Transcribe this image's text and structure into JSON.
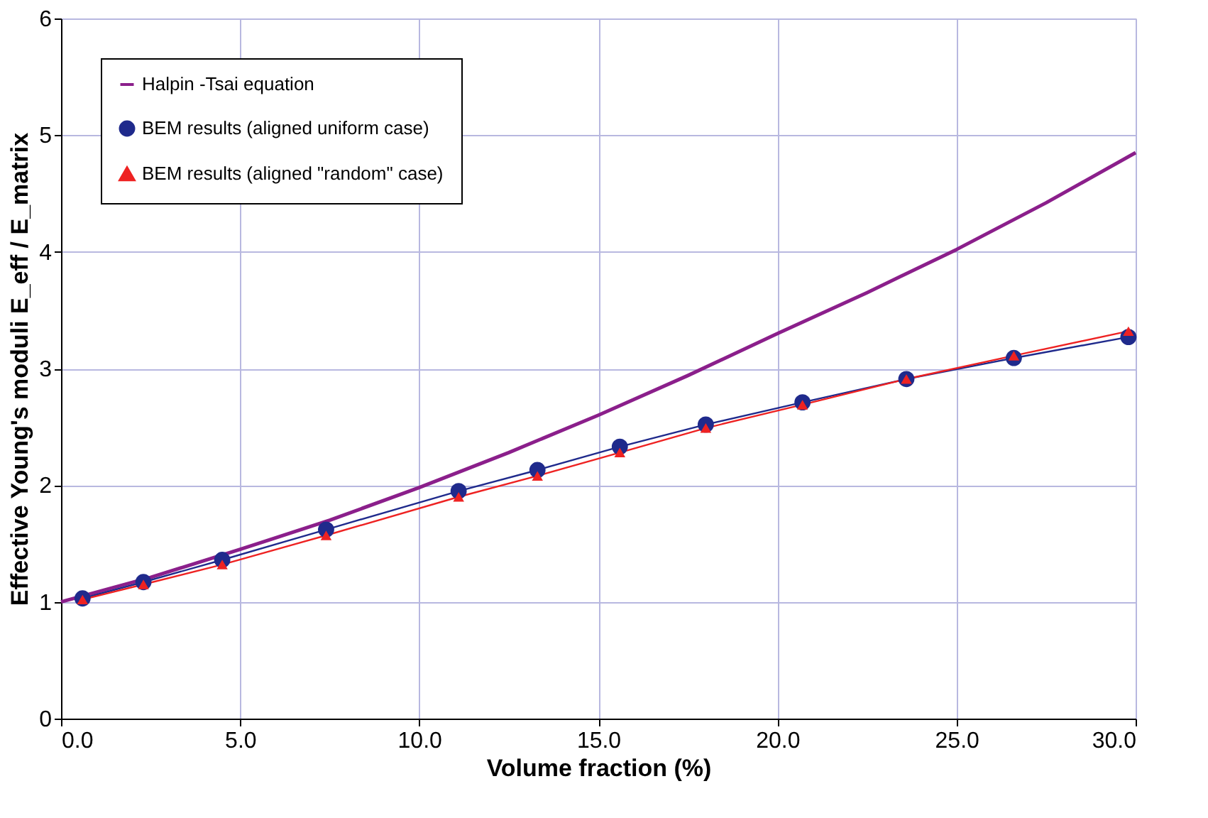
{
  "chart_data": {
    "type": "line",
    "xlabel": "Volume fraction (%)",
    "ylabel": "Effective Young's moduli E_eff / E_matrix",
    "xlim": [
      0,
      30
    ],
    "ylim": [
      0,
      6
    ],
    "xticks": [
      {
        "value": 0,
        "label": "0.0"
      },
      {
        "value": 5,
        "label": "5.0"
      },
      {
        "value": 10,
        "label": "10.0"
      },
      {
        "value": 15,
        "label": "15.0"
      },
      {
        "value": 20,
        "label": "20.0"
      },
      {
        "value": 25,
        "label": "25.0"
      },
      {
        "value": 30,
        "label": "30.0"
      }
    ],
    "yticks": [
      0,
      1,
      2,
      3,
      4,
      5,
      6
    ],
    "grid": true,
    "legend": "top left",
    "series": [
      {
        "name": "Halpin -Tsai equation",
        "color": "#8b1f8b",
        "marker": "none",
        "x": [
          0,
          2.5,
          5,
          7.5,
          10,
          12.5,
          15,
          17.5,
          20,
          22.5,
          25,
          27.5,
          30
        ],
        "values": [
          1.0,
          1.21,
          1.45,
          1.7,
          1.98,
          2.28,
          2.6,
          2.94,
          3.3,
          3.65,
          4.02,
          4.42,
          4.85
        ]
      },
      {
        "name": "BEM results (aligned uniform case)",
        "color": "#1f2a8c",
        "marker": "circle",
        "x": [
          0.6,
          2.3,
          4.5,
          7.4,
          11.1,
          13.3,
          15.6,
          18.0,
          20.7,
          23.6,
          26.6,
          29.8
        ],
        "values": [
          1.03,
          1.17,
          1.36,
          1.62,
          1.95,
          2.13,
          2.33,
          2.52,
          2.71,
          2.91,
          3.09,
          3.27
        ]
      },
      {
        "name": "BEM results (aligned \"random\" case)",
        "color": "#ee2222",
        "marker": "triangle",
        "x": [
          0.6,
          2.3,
          4.5,
          7.4,
          11.1,
          13.3,
          15.6,
          18.0,
          20.7,
          23.6,
          26.6,
          29.8
        ],
        "values": [
          1.02,
          1.15,
          1.32,
          1.57,
          1.9,
          2.08,
          2.28,
          2.49,
          2.69,
          2.91,
          3.11,
          3.32
        ]
      }
    ]
  }
}
